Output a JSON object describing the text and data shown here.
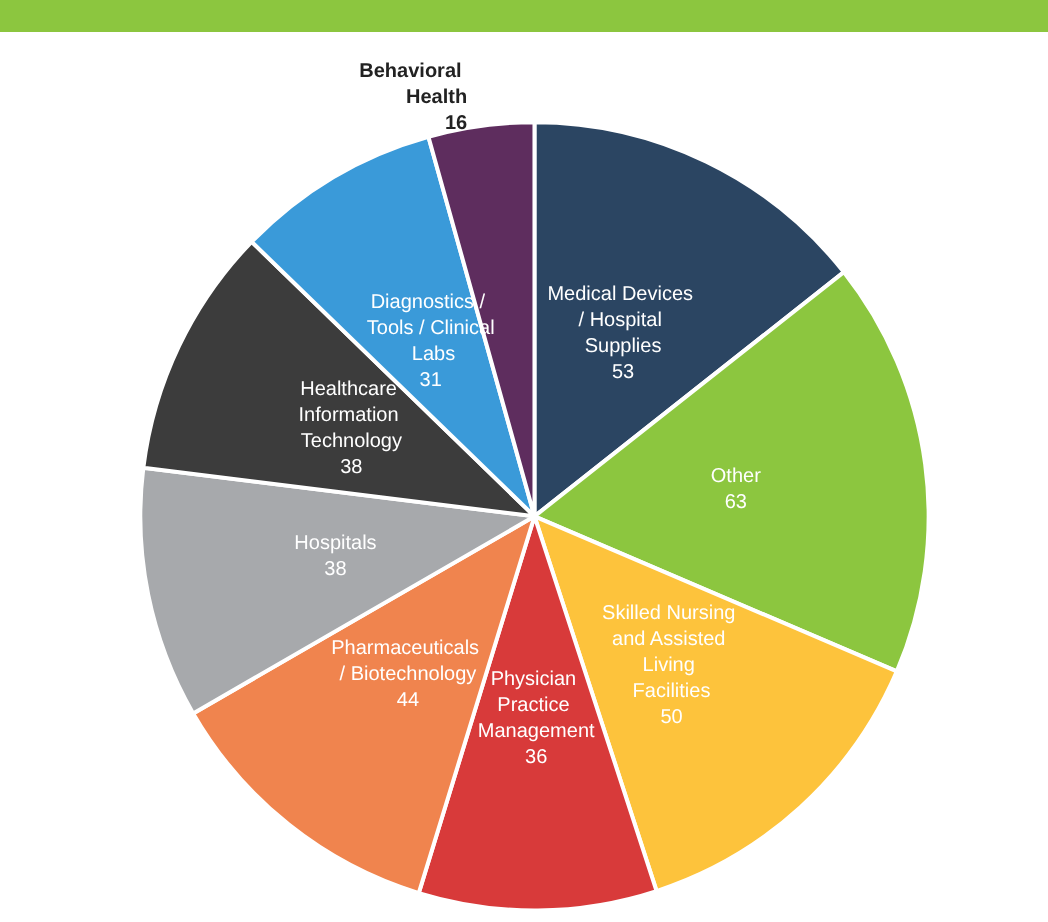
{
  "chart_data": {
    "type": "pie",
    "categories": [
      "Medical Devices / Hospital Supplies",
      "Other",
      "Skilled Nursing and Assisted Living Facilities",
      "Physician Practice Management",
      "Pharmaceuticals / Biotechnology",
      "Hospitals",
      "Healthcare Information Technology",
      "Diagnostics / Tools / Clinical Labs",
      "Behavioral Health"
    ],
    "values": [
      53,
      63,
      50,
      36,
      44,
      38,
      38,
      31,
      16
    ],
    "colors": [
      "#2b4562",
      "#8cc63f",
      "#fdc33c",
      "#d83a3a",
      "#f0844e",
      "#a7a9ac",
      "#3c3c3c",
      "#3a9ad9",
      "#5e2d5e"
    ],
    "data_labels": true,
    "legend": false
  }
}
